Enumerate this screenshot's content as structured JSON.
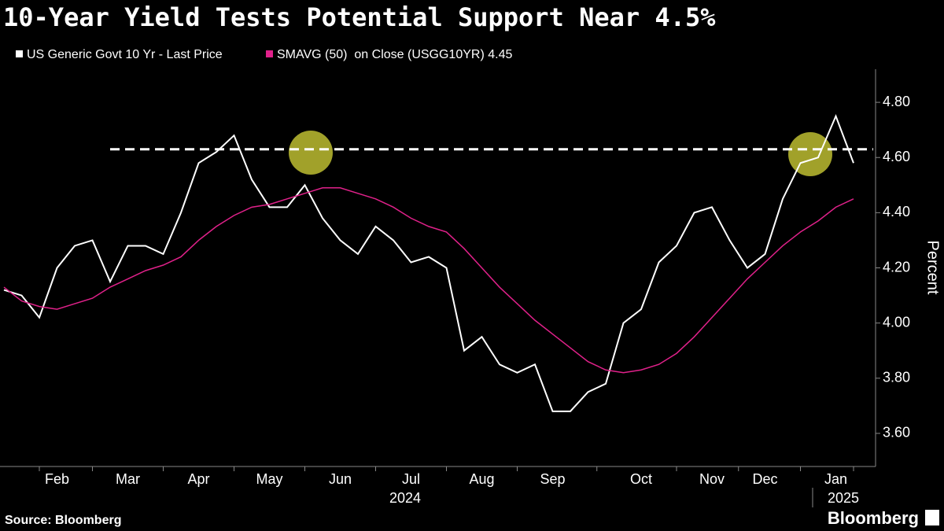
{
  "chart_data": {
    "type": "line",
    "title": "10-Year Yield Tests Potential Support Near 4.5%",
    "y_label": "Percent",
    "source": "Source: Bloomberg",
    "brand": "Bloomberg",
    "categories": [
      null,
      null,
      null,
      "Feb",
      null,
      null,
      null,
      "Mar",
      null,
      null,
      null,
      "Apr",
      null,
      null,
      null,
      "May",
      null,
      null,
      null,
      "Jun",
      null,
      null,
      null,
      "Jul",
      null,
      null,
      null,
      "Aug",
      null,
      null,
      null,
      "Sep",
      null,
      null,
      null,
      null,
      "Oct",
      null,
      null,
      null,
      "Nov",
      null,
      null,
      "Dec",
      null,
      null,
      null,
      "Jan",
      null
    ],
    "year_labels": [
      "2024",
      "2025"
    ],
    "series": [
      {
        "name": "US Generic Govt 10 Yr - Last Price",
        "color": "#ffffff",
        "values": [
          4.12,
          4.1,
          4.02,
          4.2,
          4.28,
          4.3,
          4.15,
          4.28,
          4.28,
          4.25,
          4.4,
          4.58,
          4.62,
          4.68,
          4.52,
          4.42,
          4.42,
          4.5,
          4.38,
          4.3,
          4.25,
          4.35,
          4.3,
          4.22,
          4.24,
          4.2,
          3.9,
          3.95,
          3.85,
          3.82,
          3.85,
          3.68,
          3.68,
          3.75,
          3.78,
          4.0,
          4.05,
          4.22,
          4.28,
          4.4,
          4.42,
          4.3,
          4.2,
          4.25,
          4.45,
          4.58,
          4.6,
          4.75,
          4.58
        ]
      },
      {
        "name": "SMAVG (50)  on Close (USGG10YR) 4.45",
        "color": "#e0218a",
        "values": [
          4.13,
          4.08,
          4.06,
          4.05,
          4.07,
          4.09,
          4.13,
          4.16,
          4.19,
          4.21,
          4.24,
          4.3,
          4.35,
          4.39,
          4.42,
          4.43,
          4.45,
          4.47,
          4.49,
          4.49,
          4.47,
          4.45,
          4.42,
          4.38,
          4.35,
          4.33,
          4.27,
          4.2,
          4.13,
          4.07,
          4.01,
          3.96,
          3.91,
          3.86,
          3.83,
          3.82,
          3.83,
          3.85,
          3.89,
          3.95,
          4.02,
          4.09,
          4.16,
          4.22,
          4.28,
          4.33,
          4.37,
          4.42,
          4.45
        ]
      }
    ],
    "reference_line": 4.63,
    "ylim": [
      3.48,
      4.92
    ],
    "yticks": [
      {
        "value": 3.6,
        "label": "3.60"
      },
      {
        "value": 3.8,
        "label": "3.80"
      },
      {
        "value": 4.0,
        "label": "4.00"
      },
      {
        "value": 4.2,
        "label": "4.20"
      },
      {
        "value": 4.4,
        "label": "4.40"
      },
      {
        "value": 4.6,
        "label": "4.60"
      },
      {
        "value": 4.8,
        "label": "4.80"
      }
    ],
    "grid": false
  }
}
